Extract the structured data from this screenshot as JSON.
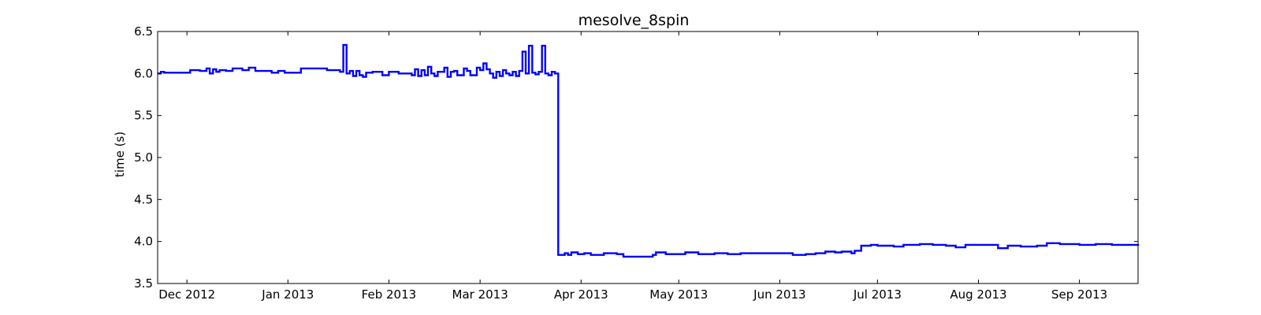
{
  "chart_data": {
    "type": "line",
    "title": "mesolve_8spin",
    "xlabel": "",
    "ylabel": "time (s)",
    "ylim": [
      3.5,
      6.5
    ],
    "xlim": [
      "2012-11-22",
      "2013-09-19"
    ],
    "yticks": [
      3.5,
      4.0,
      4.5,
      5.0,
      5.5,
      6.0,
      6.5
    ],
    "ytick_labels": [
      "3.5",
      "4.0",
      "4.5",
      "5.0",
      "5.5",
      "6.0",
      "6.5"
    ],
    "xticks": [
      "2012-12-01",
      "2013-01-01",
      "2013-02-01",
      "2013-03-01",
      "2013-04-01",
      "2013-05-01",
      "2013-06-01",
      "2013-07-01",
      "2013-08-01",
      "2013-09-01"
    ],
    "xtick_labels": [
      "Dec 2012",
      "Jan 2013",
      "Feb 2013",
      "Mar 2013",
      "Apr 2013",
      "May 2013",
      "Jun 2013",
      "Jul 2013",
      "Aug 2013",
      "Sep 2013"
    ],
    "grid": false,
    "line_color": "#0000ff",
    "series": [
      {
        "step": true,
        "points": [
          [
            "2012-11-22",
            6.0
          ],
          [
            "2012-11-23",
            6.02
          ],
          [
            "2012-11-24",
            6.01
          ],
          [
            "2012-11-26",
            6.01
          ],
          [
            "2012-11-30",
            6.01
          ],
          [
            "2012-12-02",
            6.04
          ],
          [
            "2012-12-05",
            6.03
          ],
          [
            "2012-12-07",
            6.06
          ],
          [
            "2012-12-08",
            6.0
          ],
          [
            "2012-12-09",
            6.05
          ],
          [
            "2012-12-10",
            6.02
          ],
          [
            "2012-12-11",
            6.04
          ],
          [
            "2012-12-13",
            6.03
          ],
          [
            "2012-12-15",
            6.06
          ],
          [
            "2012-12-18",
            6.04
          ],
          [
            "2012-12-20",
            6.07
          ],
          [
            "2012-12-22",
            6.03
          ],
          [
            "2012-12-27",
            6.01
          ],
          [
            "2012-12-29",
            6.03
          ],
          [
            "2012-12-31",
            6.01
          ],
          [
            "2013-01-05",
            6.06
          ],
          [
            "2013-01-13",
            6.04
          ],
          [
            "2013-01-17",
            6.02
          ],
          [
            "2013-01-18",
            6.34
          ],
          [
            "2013-01-19",
            6.0
          ],
          [
            "2013-01-20",
            6.03
          ],
          [
            "2013-01-21",
            5.97
          ],
          [
            "2013-01-22",
            6.03
          ],
          [
            "2013-01-23",
            5.98
          ],
          [
            "2013-01-24",
            5.96
          ],
          [
            "2013-01-25",
            6.01
          ],
          [
            "2013-01-27",
            6.02
          ],
          [
            "2013-01-30",
            5.98
          ],
          [
            "2013-02-01",
            6.02
          ],
          [
            "2013-02-04",
            6.0
          ],
          [
            "2013-02-08",
            5.98
          ],
          [
            "2013-02-09",
            6.05
          ],
          [
            "2013-02-10",
            5.97
          ],
          [
            "2013-02-11",
            6.04
          ],
          [
            "2013-02-12",
            5.98
          ],
          [
            "2013-02-13",
            6.08
          ],
          [
            "2013-02-14",
            6.0
          ],
          [
            "2013-02-15",
            5.97
          ],
          [
            "2013-02-16",
            6.02
          ],
          [
            "2013-02-18",
            6.07
          ],
          [
            "2013-02-19",
            5.96
          ],
          [
            "2013-02-20",
            6.02
          ],
          [
            "2013-02-21",
            6.03
          ],
          [
            "2013-02-22",
            5.98
          ],
          [
            "2013-02-24",
            6.06
          ],
          [
            "2013-02-25",
            6.03
          ],
          [
            "2013-02-26",
            5.98
          ],
          [
            "2013-02-28",
            6.07
          ],
          [
            "2013-03-01",
            6.04
          ],
          [
            "2013-03-02",
            6.12
          ],
          [
            "2013-03-03",
            6.05
          ],
          [
            "2013-03-04",
            6.0
          ],
          [
            "2013-03-05",
            5.95
          ],
          [
            "2013-03-06",
            6.02
          ],
          [
            "2013-03-07",
            5.97
          ],
          [
            "2013-03-08",
            6.04
          ],
          [
            "2013-03-09",
            6.0
          ],
          [
            "2013-03-10",
            5.98
          ],
          [
            "2013-03-11",
            6.02
          ],
          [
            "2013-03-12",
            5.97
          ],
          [
            "2013-03-13",
            6.03
          ],
          [
            "2013-03-14",
            6.26
          ],
          [
            "2013-03-15",
            6.0
          ],
          [
            "2013-03-16",
            6.33
          ],
          [
            "2013-03-17",
            6.01
          ],
          [
            "2013-03-18",
            5.99
          ],
          [
            "2013-03-19",
            6.02
          ],
          [
            "2013-03-20",
            6.33
          ],
          [
            "2013-03-21",
            6.0
          ],
          [
            "2013-03-22",
            5.98
          ],
          [
            "2013-03-23",
            6.02
          ],
          [
            "2013-03-24",
            6.0
          ],
          [
            "2013-03-25",
            3.84
          ],
          [
            "2013-03-27",
            3.86
          ],
          [
            "2013-03-28",
            3.84
          ],
          [
            "2013-03-29",
            3.87
          ],
          [
            "2013-03-31",
            3.85
          ],
          [
            "2013-04-02",
            3.86
          ],
          [
            "2013-04-04",
            3.84
          ],
          [
            "2013-04-08",
            3.86
          ],
          [
            "2013-04-12",
            3.85
          ],
          [
            "2013-04-14",
            3.82
          ],
          [
            "2013-04-20",
            3.82
          ],
          [
            "2013-04-23",
            3.84
          ],
          [
            "2013-04-24",
            3.87
          ],
          [
            "2013-04-27",
            3.85
          ],
          [
            "2013-05-03",
            3.87
          ],
          [
            "2013-05-07",
            3.85
          ],
          [
            "2013-05-12",
            3.86
          ],
          [
            "2013-05-16",
            3.85
          ],
          [
            "2013-05-20",
            3.86
          ],
          [
            "2013-06-01",
            3.86
          ],
          [
            "2013-06-05",
            3.84
          ],
          [
            "2013-06-09",
            3.85
          ],
          [
            "2013-06-12",
            3.86
          ],
          [
            "2013-06-15",
            3.88
          ],
          [
            "2013-06-18",
            3.87
          ],
          [
            "2013-06-20",
            3.88
          ],
          [
            "2013-06-23",
            3.86
          ],
          [
            "2013-06-24",
            3.89
          ],
          [
            "2013-06-26",
            3.95
          ],
          [
            "2013-06-29",
            3.96
          ],
          [
            "2013-07-01",
            3.95
          ],
          [
            "2013-07-06",
            3.94
          ],
          [
            "2013-07-09",
            3.96
          ],
          [
            "2013-07-14",
            3.97
          ],
          [
            "2013-07-18",
            3.96
          ],
          [
            "2013-07-22",
            3.95
          ],
          [
            "2013-07-25",
            3.93
          ],
          [
            "2013-07-28",
            3.96
          ],
          [
            "2013-08-04",
            3.96
          ],
          [
            "2013-08-07",
            3.92
          ],
          [
            "2013-08-10",
            3.95
          ],
          [
            "2013-08-14",
            3.94
          ],
          [
            "2013-08-19",
            3.95
          ],
          [
            "2013-08-22",
            3.98
          ],
          [
            "2013-08-26",
            3.97
          ],
          [
            "2013-09-01",
            3.96
          ],
          [
            "2013-09-06",
            3.97
          ],
          [
            "2013-09-11",
            3.96
          ],
          [
            "2013-09-19",
            3.95
          ]
        ]
      }
    ]
  }
}
